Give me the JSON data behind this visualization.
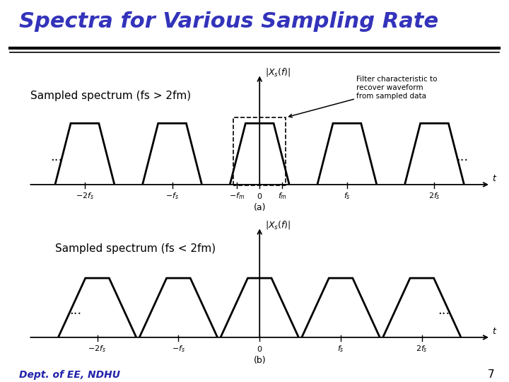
{
  "title": "Spectra for Various Sampling Rate",
  "title_color": "#3333BB",
  "title_fontsize": 22,
  "bg_color": "#FFFFFF",
  "line_color": "#000000",
  "line_width": 2.0,
  "label_a": "Sampled spectrum (fs > 2fm)",
  "label_b": "Sampled spectrum (fs < 2fm)",
  "label_fontsize": 11,
  "footer_text": "Dept. of EE, NDHU",
  "footer_color": "#2222AA",
  "page_num": "7",
  "annotation_text": "Filter characteristic to\nrecover waveform\nfrom sampled data"
}
